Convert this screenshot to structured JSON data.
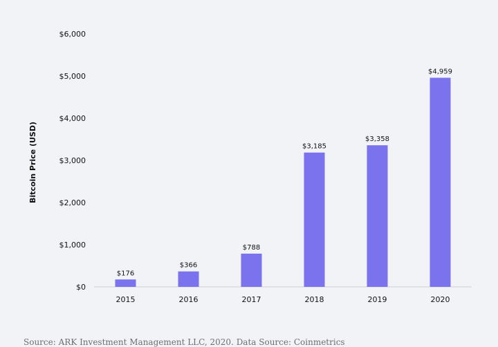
{
  "chart_data": {
    "type": "bar",
    "title": "",
    "xlabel": "",
    "ylabel": "Bitcoin Price (USD)",
    "categories": [
      "2015",
      "2016",
      "2017",
      "2018",
      "2019",
      "2020"
    ],
    "values": [
      176,
      366,
      788,
      3185,
      3358,
      4959
    ],
    "value_labels": [
      "$176",
      "$366",
      "$788",
      "$3,185",
      "$3,358",
      "$4,959"
    ],
    "ylim": [
      0,
      6000
    ],
    "yticks": [
      0,
      1000,
      2000,
      3000,
      4000,
      5000,
      6000
    ],
    "ytick_labels": [
      "$0",
      "$1,000",
      "$2,000",
      "$3,000",
      "$4,000",
      "$5,000",
      "$6,000"
    ],
    "grid": false,
    "legend": "none",
    "bar_color": "#7b72ee"
  },
  "source_note": "Source: ARK Investment Management LLC, 2020. Data Source: Coinmetrics"
}
